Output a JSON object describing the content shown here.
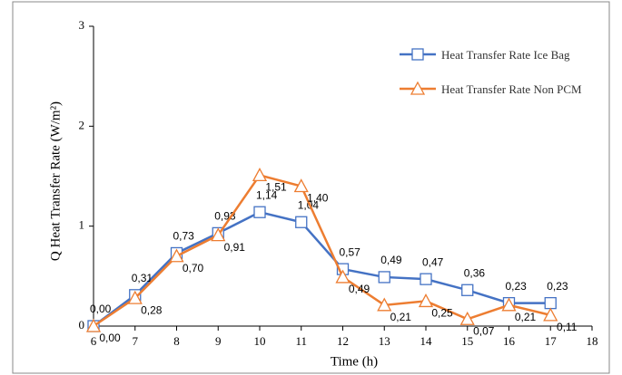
{
  "chart_data": {
    "type": "line",
    "x_label": "Time (h)",
    "y_label": "Q Heat Transfer Rate  (W/m²)",
    "x": [
      6,
      7,
      8,
      9,
      10,
      11,
      12,
      13,
      14,
      15,
      16,
      17
    ],
    "series": [
      {
        "name": "Heat Transfer Rate Ice Bag",
        "color": "#4472c4",
        "marker": "square",
        "values": [
          0.0,
          0.31,
          0.73,
          0.93,
          1.14,
          1.04,
          0.57,
          0.49,
          0.47,
          0.36,
          0.23,
          0.23
        ],
        "value_labels": [
          "0,00",
          "0,31",
          "0,73",
          "0,93",
          "1,14",
          "1,04",
          "0,57",
          "0,49",
          "0,47",
          "0,36",
          "0,23",
          "0,23"
        ]
      },
      {
        "name": "Heat Transfer Rate Non PCM",
        "color": "#ed7d31",
        "marker": "triangle",
        "values": [
          0.0,
          0.28,
          0.7,
          0.91,
          1.51,
          1.4,
          0.49,
          0.21,
          0.25,
          0.07,
          0.21,
          0.11
        ],
        "value_labels": [
          "0,00",
          "0,28",
          "0,70",
          "0,91",
          "1,51",
          "1,40",
          "0,49",
          "0,21",
          "0,25",
          "0,07",
          "0,21",
          "0,11"
        ]
      }
    ],
    "xlim": [
      6,
      18
    ],
    "xticks": [
      6,
      7,
      8,
      9,
      10,
      11,
      12,
      13,
      14,
      15,
      16,
      17,
      18
    ],
    "ylim": [
      0,
      3
    ],
    "yticks": [
      0,
      1,
      2,
      3
    ],
    "grid": false,
    "legend": "upper right"
  }
}
